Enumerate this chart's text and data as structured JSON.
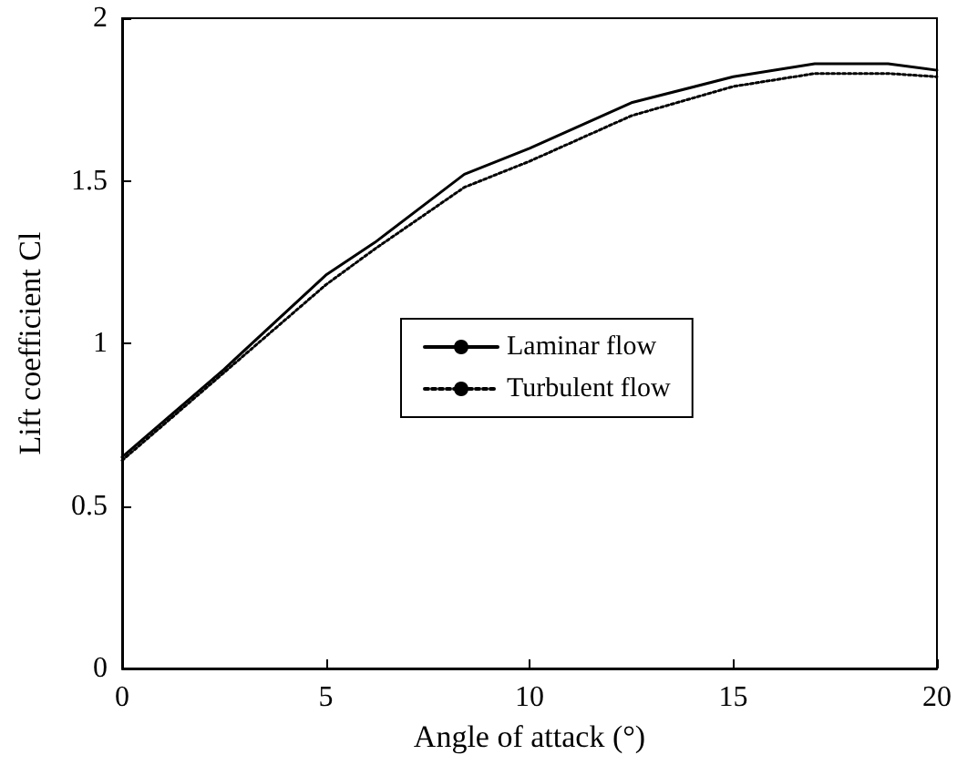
{
  "chart_data": {
    "type": "line",
    "xlabel": "Angle of attack (°)",
    "ylabel": "Lift coefficient Cl",
    "xlim": [
      0,
      20
    ],
    "xticks": [
      0,
      5,
      10,
      15,
      20
    ],
    "ylim": [
      0,
      2
    ],
    "yticks": [
      0,
      0.5,
      1,
      1.5,
      2
    ],
    "grid": false,
    "legend": "center",
    "marker": "none",
    "series": [
      {
        "name": "Laminar flow",
        "color": "#000000",
        "line_style": "solid",
        "x": [
          0,
          2.5,
          5,
          6.2,
          8.4,
          10,
          12.5,
          15,
          17,
          18.8,
          20
        ],
        "values": [
          0.65,
          0.92,
          1.21,
          1.31,
          1.52,
          1.6,
          1.74,
          1.82,
          1.86,
          1.86,
          1.84
        ]
      },
      {
        "name": "Turbulent flow",
        "color": "#000000",
        "line_style": "dotted",
        "x": [
          0,
          2.5,
          5,
          6.2,
          8.4,
          10,
          12.5,
          15,
          17,
          18.8,
          20
        ],
        "values": [
          0.64,
          0.91,
          1.18,
          1.29,
          1.48,
          1.56,
          1.7,
          1.79,
          1.83,
          1.83,
          1.82
        ]
      }
    ]
  }
}
